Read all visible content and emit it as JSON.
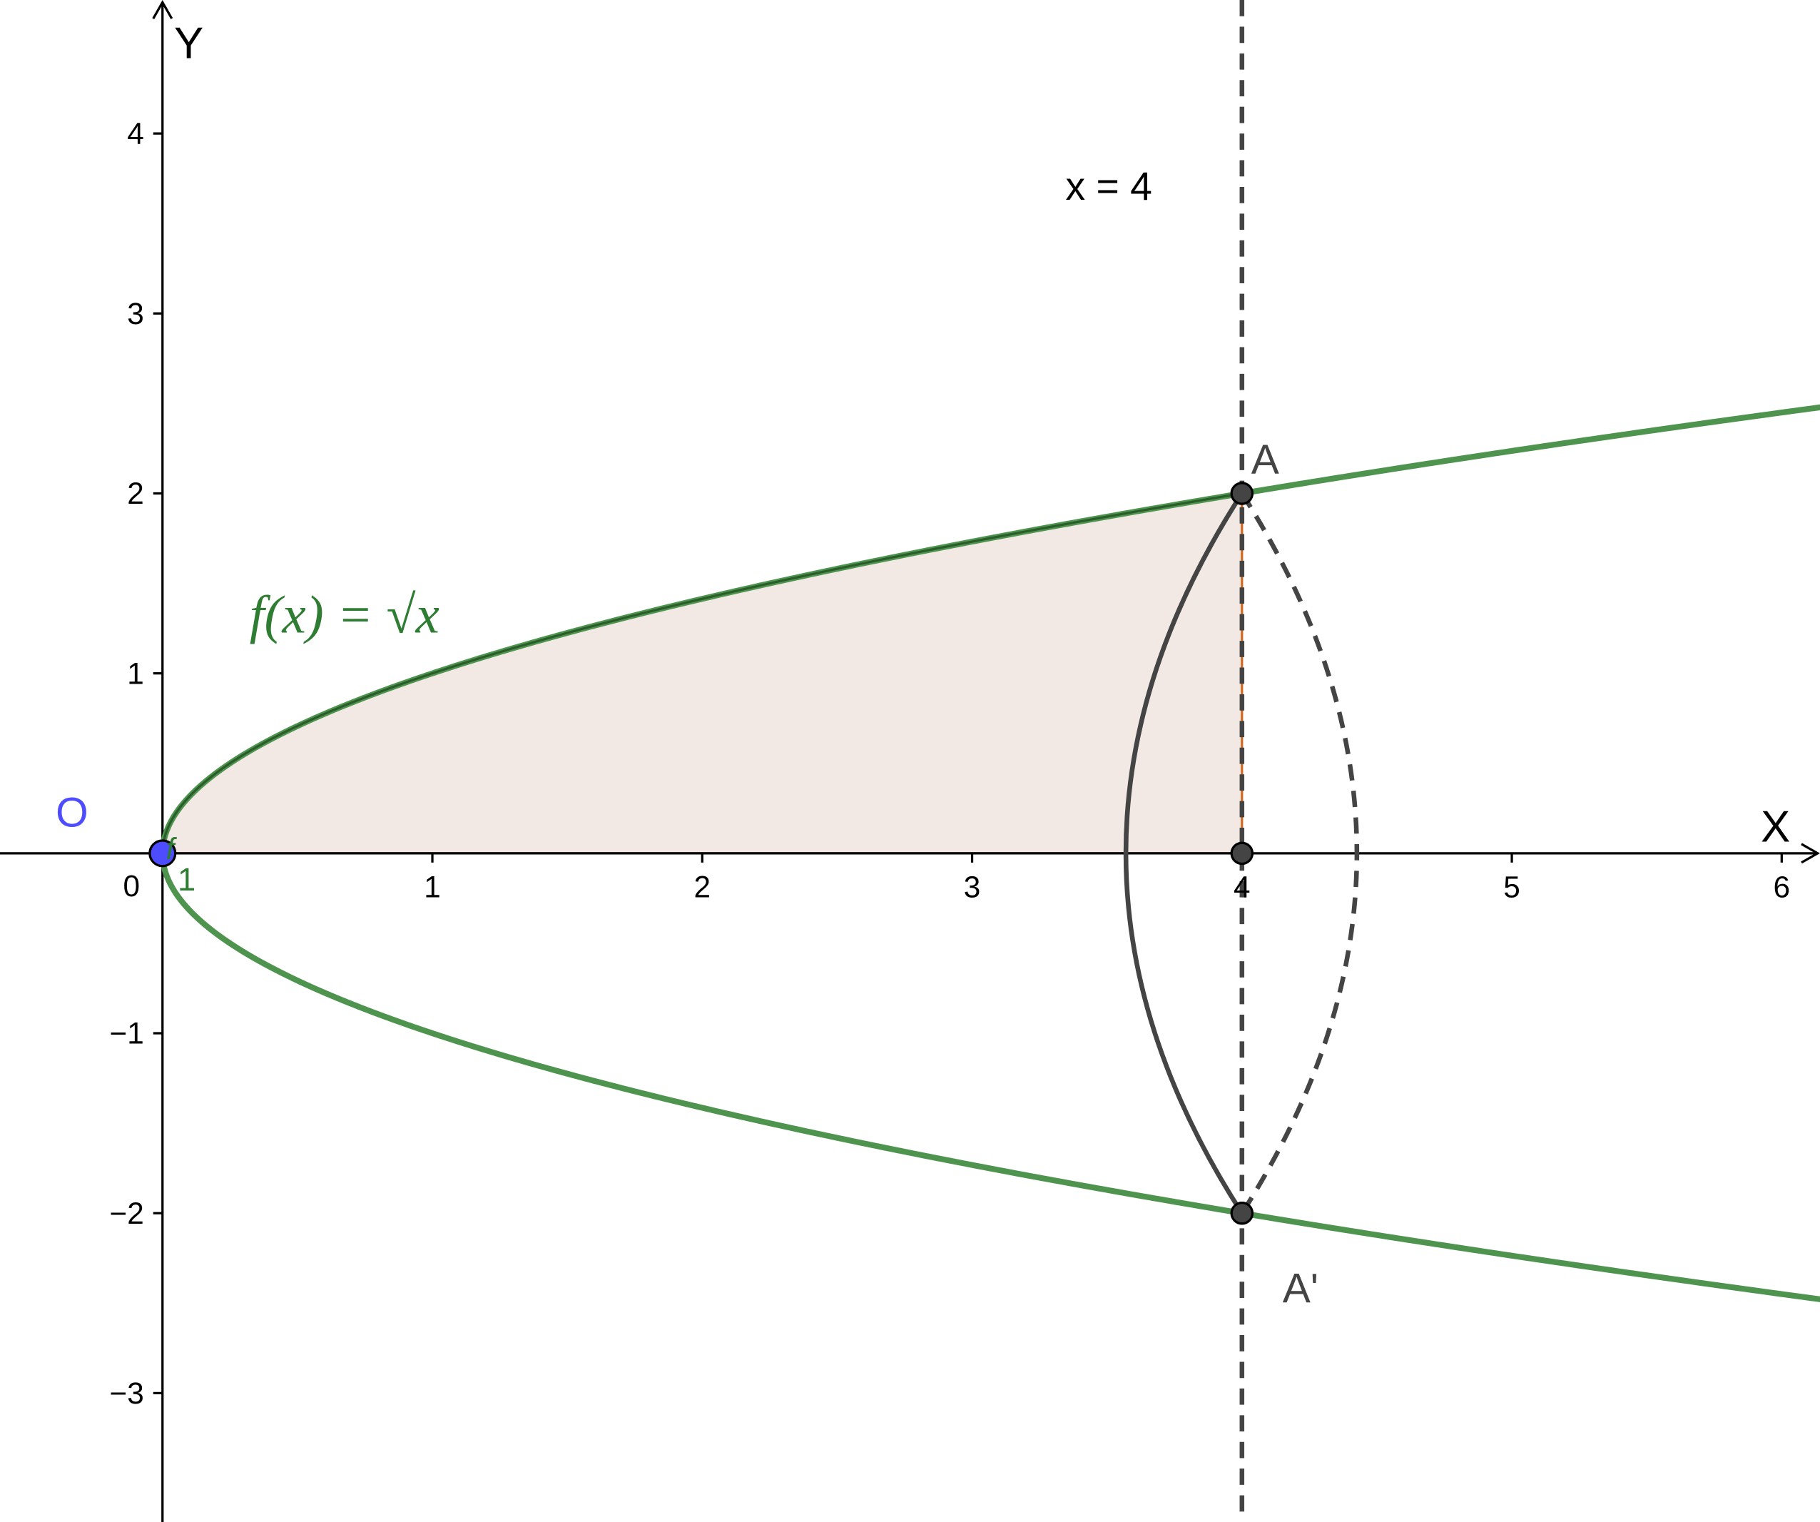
{
  "axes": {
    "x_label": "X",
    "y_label": "Y",
    "origin_label": "0",
    "x_ticks": [
      "1",
      "2",
      "3",
      "4",
      "5",
      "6"
    ],
    "y_ticks": [
      "−3",
      "−2",
      "−1",
      "1",
      "2",
      "3",
      "4"
    ]
  },
  "labels": {
    "line": "x = 4",
    "function": "f(x) = √x",
    "point_o": "O",
    "point_a": "A",
    "point_a_prime": "A'",
    "curve_name": "f",
    "curve_index": "1"
  }
}
